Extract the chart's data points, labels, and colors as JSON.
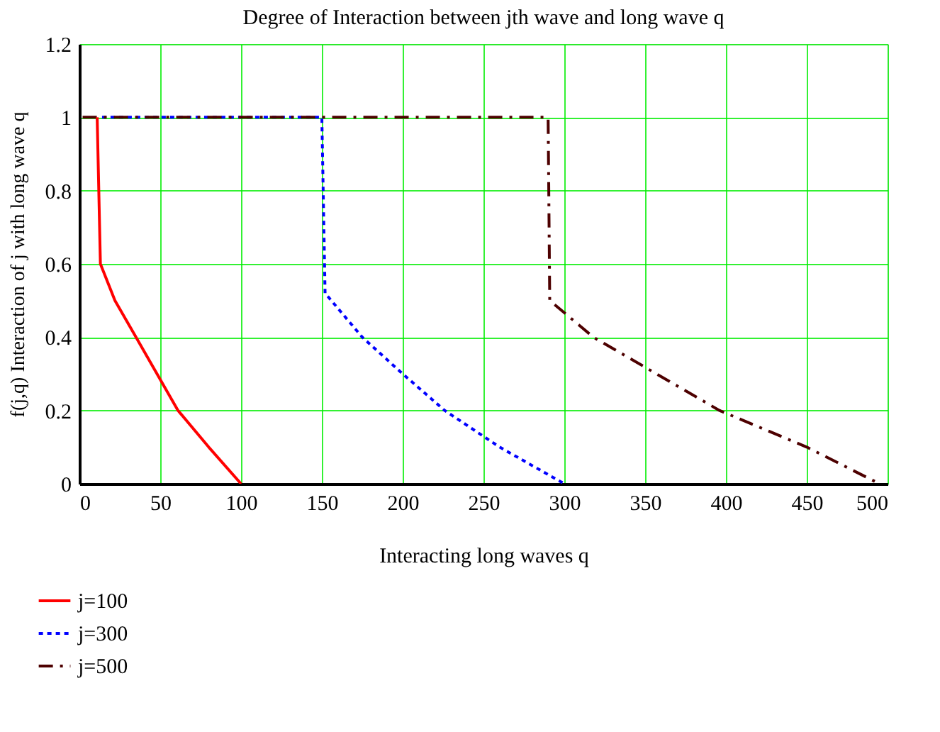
{
  "chart_data": {
    "type": "line",
    "title": "Degree of Interaction between jth wave and  long wave q",
    "xlabel": "Interacting long waves q",
    "ylabel": "f(j,q)  Interaction of j  with long wave q",
    "xlim": [
      0,
      500
    ],
    "xticks": [
      0,
      50,
      100,
      150,
      200,
      250,
      300,
      350,
      400,
      450,
      500
    ],
    "ylim": [
      0,
      1.2
    ],
    "yticks": [
      0,
      0.2,
      0.4,
      0.6,
      0.8,
      1,
      1.2
    ],
    "grid": true,
    "legend": "bottom left",
    "marker": "none",
    "series": [
      {
        "name": "j=100",
        "color": "#ff0000",
        "line_style": "solid",
        "x": [
          11,
          13,
          22,
          35,
          48,
          61,
          80,
          100
        ],
        "values": [
          1,
          0.6,
          0.5,
          0.4,
          0.3,
          0.2,
          0.1,
          0
        ]
      },
      {
        "name": "j=300",
        "color": "#0000ff",
        "line_style": "dotted",
        "x": [
          14,
          150,
          152,
          175,
          200,
          226,
          260,
          300
        ],
        "values": [
          1,
          1,
          0.52,
          0.4,
          0.3,
          0.2,
          0.1,
          0
        ]
      },
      {
        "name": "j=500",
        "color": "#4d0000",
        "line_style": "dashed",
        "x": [
          2,
          290,
          291,
          318,
          357,
          396,
          450,
          495
        ],
        "values": [
          1,
          1,
          0.5,
          0.4,
          0.3,
          0.2,
          0.1,
          0
        ]
      }
    ]
  }
}
